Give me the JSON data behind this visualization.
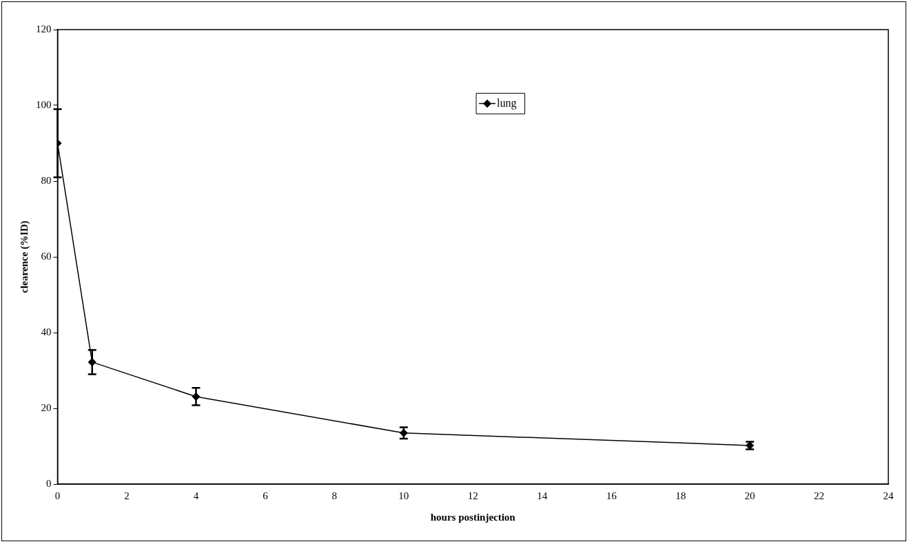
{
  "chart_data": {
    "type": "line",
    "xlabel": "hours postinjection",
    "ylabel": "clearence (%ID)",
    "x": [
      0,
      1,
      4,
      10,
      20
    ],
    "series": [
      {
        "name": "lung",
        "color": "#000000",
        "values": [
          90,
          32.2,
          23.1,
          13.5,
          10.2
        ],
        "errors": [
          9,
          3.2,
          2.3,
          1.5,
          1
        ]
      }
    ],
    "xlim": [
      0,
      24
    ],
    "xticks": [
      0,
      2,
      4,
      6,
      8,
      10,
      12,
      14,
      16,
      18,
      20,
      22,
      24
    ],
    "ylim": [
      0,
      120
    ],
    "yticks": [
      0,
      20,
      40,
      60,
      80,
      100,
      120
    ],
    "grid": false,
    "legend": "top",
    "marker": "diamond",
    "line_style": "solid"
  }
}
